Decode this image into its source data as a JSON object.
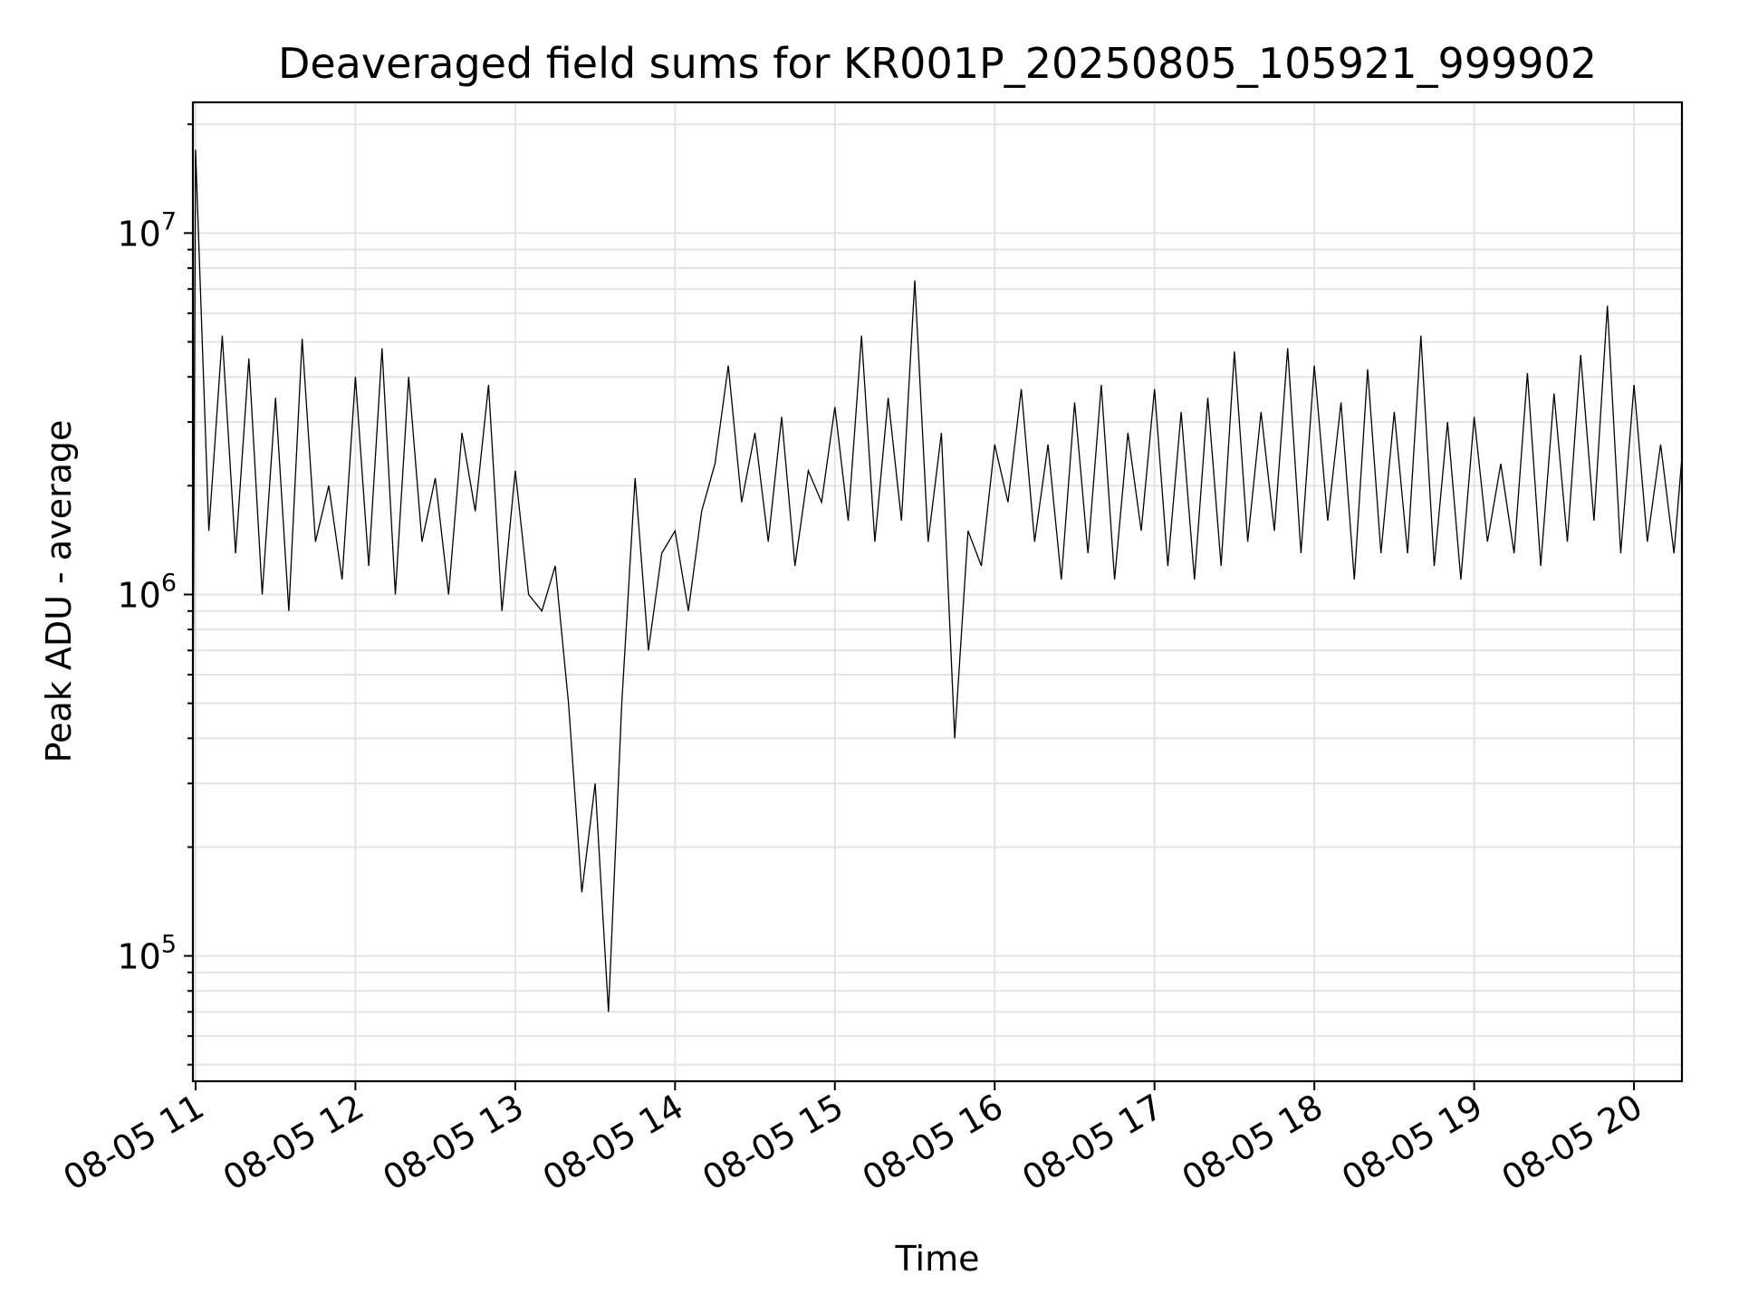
{
  "chart_data": {
    "type": "line",
    "title": "Deaveraged field sums for KR001P_20250805_105921_999902",
    "xlabel": "Time",
    "ylabel": "Peak ADU - average",
    "yscale": "log",
    "ylim": [
      45000,
      23000000
    ],
    "xlim": [
      "08-05 10:59",
      "08-05 20:18"
    ],
    "grid": true,
    "line_color": "#000000",
    "x_ticks": [
      "08-05 11",
      "08-05 12",
      "08-05 13",
      "08-05 14",
      "08-05 15",
      "08-05 16",
      "08-05 17",
      "08-05 18",
      "08-05 19",
      "08-05 20"
    ],
    "y_ticks": [
      {
        "value": 100000,
        "base": "10",
        "exp": "5"
      },
      {
        "value": 1000000,
        "base": "10",
        "exp": "6"
      },
      {
        "value": 10000000,
        "base": "10",
        "exp": "7"
      }
    ],
    "series": [
      {
        "x": [
          "08-05 10:59",
          "08-05 11:00",
          "08-05 11:05",
          "08-05 11:10",
          "08-05 11:15",
          "08-05 11:20",
          "08-05 11:25",
          "08-05 11:30",
          "08-05 11:35",
          "08-05 11:40",
          "08-05 11:45",
          "08-05 11:50",
          "08-05 11:55",
          "08-05 12:00",
          "08-05 12:05",
          "08-05 12:10",
          "08-05 12:15",
          "08-05 12:20",
          "08-05 12:25",
          "08-05 12:30",
          "08-05 12:35",
          "08-05 12:40",
          "08-05 12:45",
          "08-05 12:50",
          "08-05 12:55",
          "08-05 13:00",
          "08-05 13:05",
          "08-05 13:10",
          "08-05 13:15",
          "08-05 13:20",
          "08-05 13:25",
          "08-05 13:30",
          "08-05 13:35",
          "08-05 13:40",
          "08-05 13:45",
          "08-05 13:50",
          "08-05 13:55",
          "08-05 14:00",
          "08-05 14:05",
          "08-05 14:10",
          "08-05 14:15",
          "08-05 14:20",
          "08-05 14:25",
          "08-05 14:30",
          "08-05 14:35",
          "08-05 14:40",
          "08-05 14:45",
          "08-05 14:50",
          "08-05 14:55",
          "08-05 15:00",
          "08-05 15:05",
          "08-05 15:10",
          "08-05 15:15",
          "08-05 15:20",
          "08-05 15:25",
          "08-05 15:30",
          "08-05 15:35",
          "08-05 15:40",
          "08-05 15:45",
          "08-05 15:50",
          "08-05 15:55",
          "08-05 16:00",
          "08-05 16:05",
          "08-05 16:10",
          "08-05 16:15",
          "08-05 16:20",
          "08-05 16:25",
          "08-05 16:30",
          "08-05 16:35",
          "08-05 16:40",
          "08-05 16:45",
          "08-05 16:50",
          "08-05 16:55",
          "08-05 17:00",
          "08-05 17:05",
          "08-05 17:10",
          "08-05 17:15",
          "08-05 17:20",
          "08-05 17:25",
          "08-05 17:30",
          "08-05 17:35",
          "08-05 17:40",
          "08-05 17:45",
          "08-05 17:50",
          "08-05 17:55",
          "08-05 18:00",
          "08-05 18:05",
          "08-05 18:10",
          "08-05 18:15",
          "08-05 18:20",
          "08-05 18:25",
          "08-05 18:30",
          "08-05 18:35",
          "08-05 18:40",
          "08-05 18:45",
          "08-05 18:50",
          "08-05 18:55",
          "08-05 19:00",
          "08-05 19:05",
          "08-05 19:10",
          "08-05 19:15",
          "08-05 19:20",
          "08-05 19:25",
          "08-05 19:30",
          "08-05 19:35",
          "08-05 19:40",
          "08-05 19:45",
          "08-05 19:50",
          "08-05 19:55",
          "08-05 20:00",
          "08-05 20:05",
          "08-05 20:10",
          "08-05 20:15",
          "08-05 20:18"
        ],
        "values": [
          410000,
          17000000,
          1500000,
          5200000,
          1300000,
          4500000,
          1000000,
          3500000,
          900000,
          5100000,
          1400000,
          2000000,
          1100000,
          4000000,
          1200000,
          4800000,
          1000000,
          4000000,
          1400000,
          2100000,
          1000000,
          2800000,
          1700000,
          3800000,
          900000,
          2200000,
          1000000,
          900000,
          1200000,
          500000,
          150000,
          300000,
          70000,
          500000,
          2100000,
          700000,
          1300000,
          1500000,
          900000,
          1700000,
          2300000,
          4300000,
          1800000,
          2800000,
          1400000,
          3100000,
          1200000,
          2200000,
          1800000,
          3300000,
          1600000,
          5200000,
          1400000,
          3500000,
          1600000,
          7400000,
          1400000,
          2800000,
          400000,
          1500000,
          1200000,
          2600000,
          1800000,
          3700000,
          1400000,
          2600000,
          1100000,
          3400000,
          1300000,
          3800000,
          1100000,
          2800000,
          1500000,
          3700000,
          1200000,
          3200000,
          1100000,
          3500000,
          1200000,
          4700000,
          1400000,
          3200000,
          1500000,
          4800000,
          1300000,
          4300000,
          1600000,
          3400000,
          1100000,
          4200000,
          1300000,
          3200000,
          1300000,
          5200000,
          1200000,
          3000000,
          1100000,
          3100000,
          1400000,
          2300000,
          1300000,
          4100000,
          1200000,
          3600000,
          1400000,
          4600000,
          1600000,
          6300000,
          1300000,
          3800000,
          1400000,
          2600000,
          1300000,
          2400000
        ]
      }
    ]
  }
}
